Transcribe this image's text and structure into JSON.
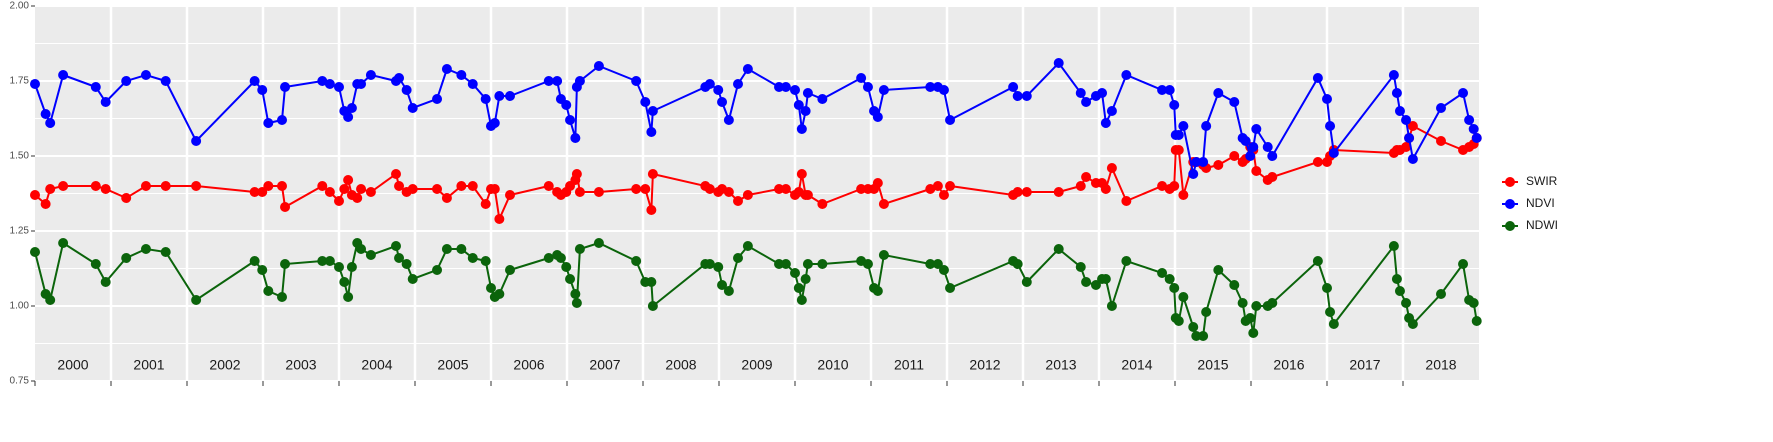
{
  "chart_data": {
    "type": "line",
    "x": [
      2000.0,
      2000.14,
      2000.2,
      2000.37,
      2000.8,
      2000.93,
      2001.2,
      2001.46,
      2001.72,
      2002.12,
      2002.89,
      2002.99,
      2003.07,
      2003.25,
      2003.29,
      2003.78,
      2003.88,
      2004.0,
      2004.07,
      2004.12,
      2004.17,
      2004.24,
      2004.29,
      2004.42,
      2004.75,
      2004.79,
      2004.89,
      2004.97,
      2005.29,
      2005.42,
      2005.61,
      2005.76,
      2005.93,
      2006.0,
      2006.05,
      2006.11,
      2006.25,
      2006.76,
      2006.87,
      2006.92,
      2006.99,
      2007.04,
      2007.11,
      2007.13,
      2007.17,
      2007.42,
      2007.91,
      2008.03,
      2008.11,
      2008.13,
      2008.82,
      2008.88,
      2008.99,
      2009.04,
      2009.13,
      2009.25,
      2009.38,
      2009.79,
      2009.88,
      2010.0,
      2010.05,
      2010.09,
      2010.14,
      2010.17,
      2010.36,
      2010.87,
      2010.96,
      2011.04,
      2011.09,
      2011.17,
      2011.78,
      2011.88,
      2011.96,
      2012.04,
      2012.87,
      2012.93,
      2013.05,
      2013.47,
      2013.76,
      2013.83,
      2013.96,
      2014.04,
      2014.09,
      2014.17,
      2014.36,
      2014.83,
      2014.93,
      2014.99,
      2015.01,
      2015.05,
      2015.11,
      2015.24,
      2015.28,
      2015.37,
      2015.41,
      2015.57,
      2015.78,
      2015.89,
      2015.93,
      2015.99,
      2016.03,
      2016.07,
      2016.22,
      2016.28,
      2016.88,
      2017.0,
      2017.04,
      2017.09,
      2017.88,
      2017.92,
      2017.96,
      2018.04,
      2018.08,
      2018.13,
      2018.5,
      2018.79,
      2018.87,
      2018.93,
      2018.97
    ],
    "series": [
      {
        "name": "SWIR",
        "color": "#ff0000",
        "values": [
          1.37,
          1.34,
          1.39,
          1.4,
          1.4,
          1.39,
          1.36,
          1.4,
          1.4,
          1.4,
          1.38,
          1.38,
          1.4,
          1.4,
          1.33,
          1.4,
          1.38,
          1.35,
          1.39,
          1.42,
          1.37,
          1.36,
          1.39,
          1.38,
          1.44,
          1.4,
          1.38,
          1.39,
          1.39,
          1.36,
          1.4,
          1.4,
          1.34,
          1.39,
          1.39,
          1.29,
          1.37,
          1.4,
          1.38,
          1.37,
          1.38,
          1.4,
          1.42,
          1.44,
          1.38,
          1.38,
          1.39,
          1.39,
          1.32,
          1.44,
          1.4,
          1.39,
          1.38,
          1.39,
          1.38,
          1.35,
          1.37,
          1.39,
          1.39,
          1.37,
          1.38,
          1.44,
          1.37,
          1.37,
          1.34,
          1.39,
          1.39,
          1.39,
          1.41,
          1.34,
          1.39,
          1.4,
          1.37,
          1.4,
          1.37,
          1.38,
          1.38,
          1.38,
          1.4,
          1.43,
          1.41,
          1.41,
          1.39,
          1.46,
          1.35,
          1.4,
          1.39,
          1.4,
          1.52,
          1.52,
          1.37,
          1.48,
          1.48,
          1.47,
          1.46,
          1.47,
          1.5,
          1.48,
          1.49,
          1.53,
          1.52,
          1.45,
          1.42,
          1.43,
          1.48,
          1.48,
          1.5,
          1.52,
          1.51,
          1.52,
          1.52,
          1.53,
          1.56,
          1.6,
          1.55,
          1.52,
          1.53,
          1.54,
          1.56
        ]
      },
      {
        "name": "NDVI",
        "color": "#0000ff",
        "values": [
          1.74,
          1.64,
          1.61,
          1.77,
          1.73,
          1.68,
          1.75,
          1.77,
          1.75,
          1.55,
          1.75,
          1.72,
          1.61,
          1.62,
          1.73,
          1.75,
          1.74,
          1.73,
          1.65,
          1.63,
          1.66,
          1.74,
          1.74,
          1.77,
          1.75,
          1.76,
          1.72,
          1.66,
          1.69,
          1.79,
          1.77,
          1.74,
          1.69,
          1.6,
          1.61,
          1.7,
          1.7,
          1.75,
          1.75,
          1.69,
          1.67,
          1.62,
          1.56,
          1.73,
          1.75,
          1.8,
          1.75,
          1.68,
          1.58,
          1.65,
          1.73,
          1.74,
          1.72,
          1.68,
          1.62,
          1.74,
          1.79,
          1.73,
          1.73,
          1.72,
          1.67,
          1.59,
          1.65,
          1.71,
          1.69,
          1.76,
          1.73,
          1.65,
          1.63,
          1.72,
          1.73,
          1.73,
          1.72,
          1.62,
          1.73,
          1.7,
          1.7,
          1.81,
          1.71,
          1.68,
          1.7,
          1.71,
          1.61,
          1.65,
          1.77,
          1.72,
          1.72,
          1.67,
          1.57,
          1.57,
          1.6,
          1.44,
          1.48,
          1.48,
          1.6,
          1.71,
          1.68,
          1.56,
          1.55,
          1.5,
          1.53,
          1.59,
          1.53,
          1.5,
          1.76,
          1.69,
          1.6,
          1.51,
          1.77,
          1.71,
          1.65,
          1.62,
          1.56,
          1.49,
          1.66,
          1.71,
          1.62,
          1.59,
          1.56
        ]
      },
      {
        "name": "NDWI",
        "color": "#0b640b",
        "values": [
          1.18,
          1.04,
          1.02,
          1.21,
          1.14,
          1.08,
          1.16,
          1.19,
          1.18,
          1.02,
          1.15,
          1.12,
          1.05,
          1.03,
          1.14,
          1.15,
          1.15,
          1.13,
          1.08,
          1.03,
          1.13,
          1.21,
          1.19,
          1.17,
          1.2,
          1.16,
          1.14,
          1.09,
          1.12,
          1.19,
          1.19,
          1.16,
          1.15,
          1.06,
          1.03,
          1.04,
          1.12,
          1.16,
          1.17,
          1.16,
          1.13,
          1.09,
          1.04,
          1.01,
          1.19,
          1.21,
          1.15,
          1.08,
          1.08,
          1.0,
          1.14,
          1.14,
          1.13,
          1.07,
          1.05,
          1.16,
          1.2,
          1.14,
          1.14,
          1.11,
          1.06,
          1.02,
          1.09,
          1.14,
          1.14,
          1.15,
          1.14,
          1.06,
          1.05,
          1.17,
          1.14,
          1.14,
          1.12,
          1.06,
          1.15,
          1.14,
          1.08,
          1.19,
          1.13,
          1.08,
          1.07,
          1.09,
          1.09,
          1.0,
          1.15,
          1.11,
          1.09,
          1.06,
          0.96,
          0.95,
          1.03,
          0.93,
          0.9,
          0.9,
          0.98,
          1.12,
          1.07,
          1.01,
          0.95,
          0.96,
          0.91,
          1.0,
          1.0,
          1.01,
          1.15,
          1.06,
          0.98,
          0.94,
          1.2,
          1.09,
          1.05,
          1.01,
          0.96,
          0.94,
          1.04,
          1.14,
          1.02,
          1.01,
          0.95
        ]
      }
    ],
    "xlim": [
      2000,
      2019
    ],
    "xticks": [
      {
        "value": 2000.5,
        "label": "2000"
      },
      {
        "value": 2001.5,
        "label": "2001"
      },
      {
        "value": 2002.5,
        "label": "2002"
      },
      {
        "value": 2003.5,
        "label": "2003"
      },
      {
        "value": 2004.5,
        "label": "2004"
      },
      {
        "value": 2005.5,
        "label": "2005"
      },
      {
        "value": 2006.5,
        "label": "2006"
      },
      {
        "value": 2007.5,
        "label": "2007"
      },
      {
        "value": 2008.5,
        "label": "2008"
      },
      {
        "value": 2009.5,
        "label": "2009"
      },
      {
        "value": 2010.5,
        "label": "2010"
      },
      {
        "value": 2011.5,
        "label": "2011"
      },
      {
        "value": 2012.5,
        "label": "2012"
      },
      {
        "value": 2013.5,
        "label": "2013"
      },
      {
        "value": 2014.5,
        "label": "2014"
      },
      {
        "value": 2015.5,
        "label": "2015"
      },
      {
        "value": 2016.5,
        "label": "2016"
      },
      {
        "value": 2017.5,
        "label": "2017"
      },
      {
        "value": 2018.5,
        "label": "2018"
      }
    ],
    "ylim": [
      0.75,
      2
    ],
    "yticks": [
      {
        "value": 0.75,
        "label": "0.75"
      },
      {
        "value": 1,
        "label": "1.00"
      },
      1.25,
      {
        "value": 1.5,
        "label": "1.50"
      },
      1.75,
      {
        "value": 2,
        "label": "2.00"
      }
    ],
    "grid": true,
    "legend": "right"
  }
}
